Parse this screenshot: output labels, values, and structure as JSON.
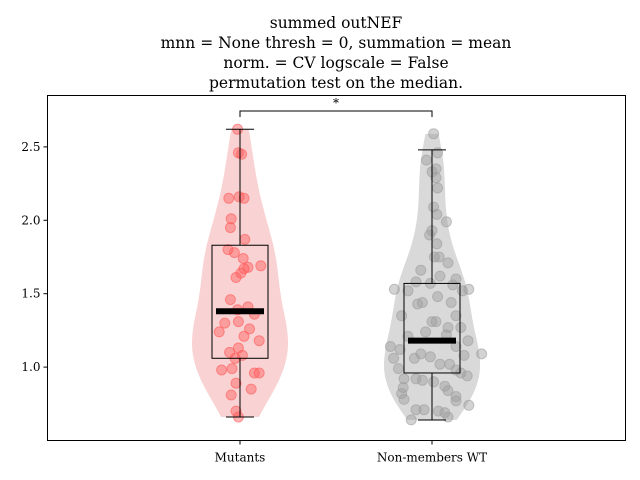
{
  "chart_data": {
    "type": "violin",
    "title_lines": [
      "summed outNEF",
      "mnn = None thresh = 0, summation = mean",
      "norm. = CV logscale = False",
      "permutation test on the median."
    ],
    "xlabel": "",
    "ylabel": "",
    "ylim": [
      0.5,
      2.85
    ],
    "y_ticks": [
      1.0,
      1.5,
      2.0,
      2.5
    ],
    "y_tick_labels": [
      "1.0",
      "1.5",
      "2.0",
      "2.5"
    ],
    "categories": [
      "Mutants",
      "Non-members WT"
    ],
    "grid": false,
    "significance": {
      "between": [
        "Mutants",
        "Non-members WT"
      ],
      "label": "*"
    },
    "groups": [
      {
        "name": "Mutants",
        "color": "#ff5a5a",
        "violin_color": "#f9d3d3",
        "box": {
          "whisker_low": 0.66,
          "q1": 1.06,
          "median": 1.38,
          "q3": 1.83,
          "whisker_high": 2.62
        },
        "points": [
          {
            "dx": -0.03,
            "y": 2.62
          },
          {
            "dx": -0.02,
            "y": 2.46
          },
          {
            "dx": 0.02,
            "y": 2.45
          },
          {
            "dx": -0.01,
            "y": 2.16
          },
          {
            "dx": 0.05,
            "y": 2.15
          },
          {
            "dx": -0.14,
            "y": 2.15
          },
          {
            "dx": -0.11,
            "y": 2.01
          },
          {
            "dx": -0.12,
            "y": 1.95
          },
          {
            "dx": 0.06,
            "y": 1.87
          },
          {
            "dx": -0.15,
            "y": 1.8
          },
          {
            "dx": -0.07,
            "y": 1.78
          },
          {
            "dx": 0.04,
            "y": 1.74
          },
          {
            "dx": 0.26,
            "y": 1.69
          },
          {
            "dx": 0.05,
            "y": 1.67
          },
          {
            "dx": 0.1,
            "y": 1.68
          },
          {
            "dx": 0.01,
            "y": 1.64
          },
          {
            "dx": -0.05,
            "y": 1.61
          },
          {
            "dx": -0.12,
            "y": 1.46
          },
          {
            "dx": 0.1,
            "y": 1.41
          },
          {
            "dx": -0.03,
            "y": 1.39
          },
          {
            "dx": 0.18,
            "y": 1.36
          },
          {
            "dx": -0.02,
            "y": 1.31
          },
          {
            "dx": -0.19,
            "y": 1.3
          },
          {
            "dx": 0.12,
            "y": 1.26
          },
          {
            "dx": -0.26,
            "y": 1.24
          },
          {
            "dx": 0.05,
            "y": 1.21
          },
          {
            "dx": 0.24,
            "y": 1.18
          },
          {
            "dx": -0.02,
            "y": 1.13
          },
          {
            "dx": -0.13,
            "y": 1.1
          },
          {
            "dx": 0.03,
            "y": 1.08
          },
          {
            "dx": -0.06,
            "y": 1.06
          },
          {
            "dx": -0.23,
            "y": 0.98
          },
          {
            "dx": -0.1,
            "y": 0.99
          },
          {
            "dx": 0.18,
            "y": 0.96
          },
          {
            "dx": 0.24,
            "y": 0.96
          },
          {
            "dx": -0.05,
            "y": 0.89
          },
          {
            "dx": 0.14,
            "y": 0.85
          },
          {
            "dx": -0.11,
            "y": 0.81
          },
          {
            "dx": -0.05,
            "y": 0.7
          },
          {
            "dx": -0.02,
            "y": 0.66
          }
        ]
      },
      {
        "name": "Non-members WT",
        "color": "#9e9e9e",
        "violin_color": "#d9d9d9",
        "box": {
          "whisker_low": 0.64,
          "q1": 0.96,
          "median": 1.18,
          "q3": 1.57,
          "whisker_high": 2.48
        },
        "points": [
          {
            "dx": 0.02,
            "y": 2.59
          },
          {
            "dx": 0.07,
            "y": 2.46
          },
          {
            "dx": -0.07,
            "y": 2.41
          },
          {
            "dx": 0.05,
            "y": 2.35
          },
          {
            "dx": 0.0,
            "y": 2.33
          },
          {
            "dx": 0.05,
            "y": 2.29
          },
          {
            "dx": 0.07,
            "y": 2.22
          },
          {
            "dx": 0.02,
            "y": 2.09
          },
          {
            "dx": 0.06,
            "y": 2.04
          },
          {
            "dx": 0.18,
            "y": 1.99
          },
          {
            "dx": 0.0,
            "y": 1.93
          },
          {
            "dx": -0.03,
            "y": 1.9
          },
          {
            "dx": 0.06,
            "y": 1.84
          },
          {
            "dx": 0.03,
            "y": 1.75
          },
          {
            "dx": 0.09,
            "y": 1.75
          },
          {
            "dx": 0.2,
            "y": 1.71
          },
          {
            "dx": -0.14,
            "y": 1.66
          },
          {
            "dx": 0.1,
            "y": 1.62
          },
          {
            "dx": 0.3,
            "y": 1.6
          },
          {
            "dx": -0.2,
            "y": 1.58
          },
          {
            "dx": -0.02,
            "y": 1.57
          },
          {
            "dx": 0.26,
            "y": 1.56
          },
          {
            "dx": 0.46,
            "y": 1.53
          },
          {
            "dx": -0.47,
            "y": 1.53
          },
          {
            "dx": 0.38,
            "y": 1.52
          },
          {
            "dx": -0.3,
            "y": 1.52
          },
          {
            "dx": 0.07,
            "y": 1.48
          },
          {
            "dx": -0.12,
            "y": 1.44
          },
          {
            "dx": 0.24,
            "y": 1.44
          },
          {
            "dx": -0.18,
            "y": 1.43
          },
          {
            "dx": 0.3,
            "y": 1.35
          },
          {
            "dx": -0.38,
            "y": 1.35
          },
          {
            "dx": 0.0,
            "y": 1.31
          },
          {
            "dx": 0.05,
            "y": 1.31
          },
          {
            "dx": 0.2,
            "y": 1.27
          },
          {
            "dx": 0.36,
            "y": 1.27
          },
          {
            "dx": -0.08,
            "y": 1.24
          },
          {
            "dx": -0.3,
            "y": 1.21
          },
          {
            "dx": 0.18,
            "y": 1.22
          },
          {
            "dx": 0.45,
            "y": 1.18
          },
          {
            "dx": -0.52,
            "y": 1.14
          },
          {
            "dx": 0.3,
            "y": 1.14
          },
          {
            "dx": -0.4,
            "y": 1.12
          },
          {
            "dx": -0.14,
            "y": 1.09
          },
          {
            "dx": 0.4,
            "y": 1.08
          },
          {
            "dx": 0.62,
            "y": 1.09
          },
          {
            "dx": -0.02,
            "y": 1.07
          },
          {
            "dx": -0.22,
            "y": 1.06
          },
          {
            "dx": -0.48,
            "y": 1.06
          },
          {
            "dx": 0.22,
            "y": 1.02
          },
          {
            "dx": 0.1,
            "y": 1.02
          },
          {
            "dx": 0.3,
            "y": 0.98
          },
          {
            "dx": -0.42,
            "y": 0.99
          },
          {
            "dx": 0.36,
            "y": 0.96
          },
          {
            "dx": -0.35,
            "y": 0.92
          },
          {
            "dx": 0.44,
            "y": 0.94
          },
          {
            "dx": -0.2,
            "y": 0.92
          },
          {
            "dx": -0.12,
            "y": 0.91
          },
          {
            "dx": 0.02,
            "y": 0.9
          },
          {
            "dx": -0.36,
            "y": 0.86
          },
          {
            "dx": 0.2,
            "y": 0.84
          },
          {
            "dx": 0.16,
            "y": 0.87
          },
          {
            "dx": -0.38,
            "y": 0.82
          },
          {
            "dx": 0.3,
            "y": 0.8
          },
          {
            "dx": -0.35,
            "y": 0.78
          },
          {
            "dx": 0.3,
            "y": 0.77
          },
          {
            "dx": 0.46,
            "y": 0.74
          },
          {
            "dx": -0.2,
            "y": 0.71
          },
          {
            "dx": -0.1,
            "y": 0.71
          },
          {
            "dx": 0.08,
            "y": 0.7
          },
          {
            "dx": 0.16,
            "y": 0.69
          },
          {
            "dx": -0.26,
            "y": 0.64
          },
          {
            "dx": 0.2,
            "y": 0.66
          }
        ]
      }
    ]
  }
}
